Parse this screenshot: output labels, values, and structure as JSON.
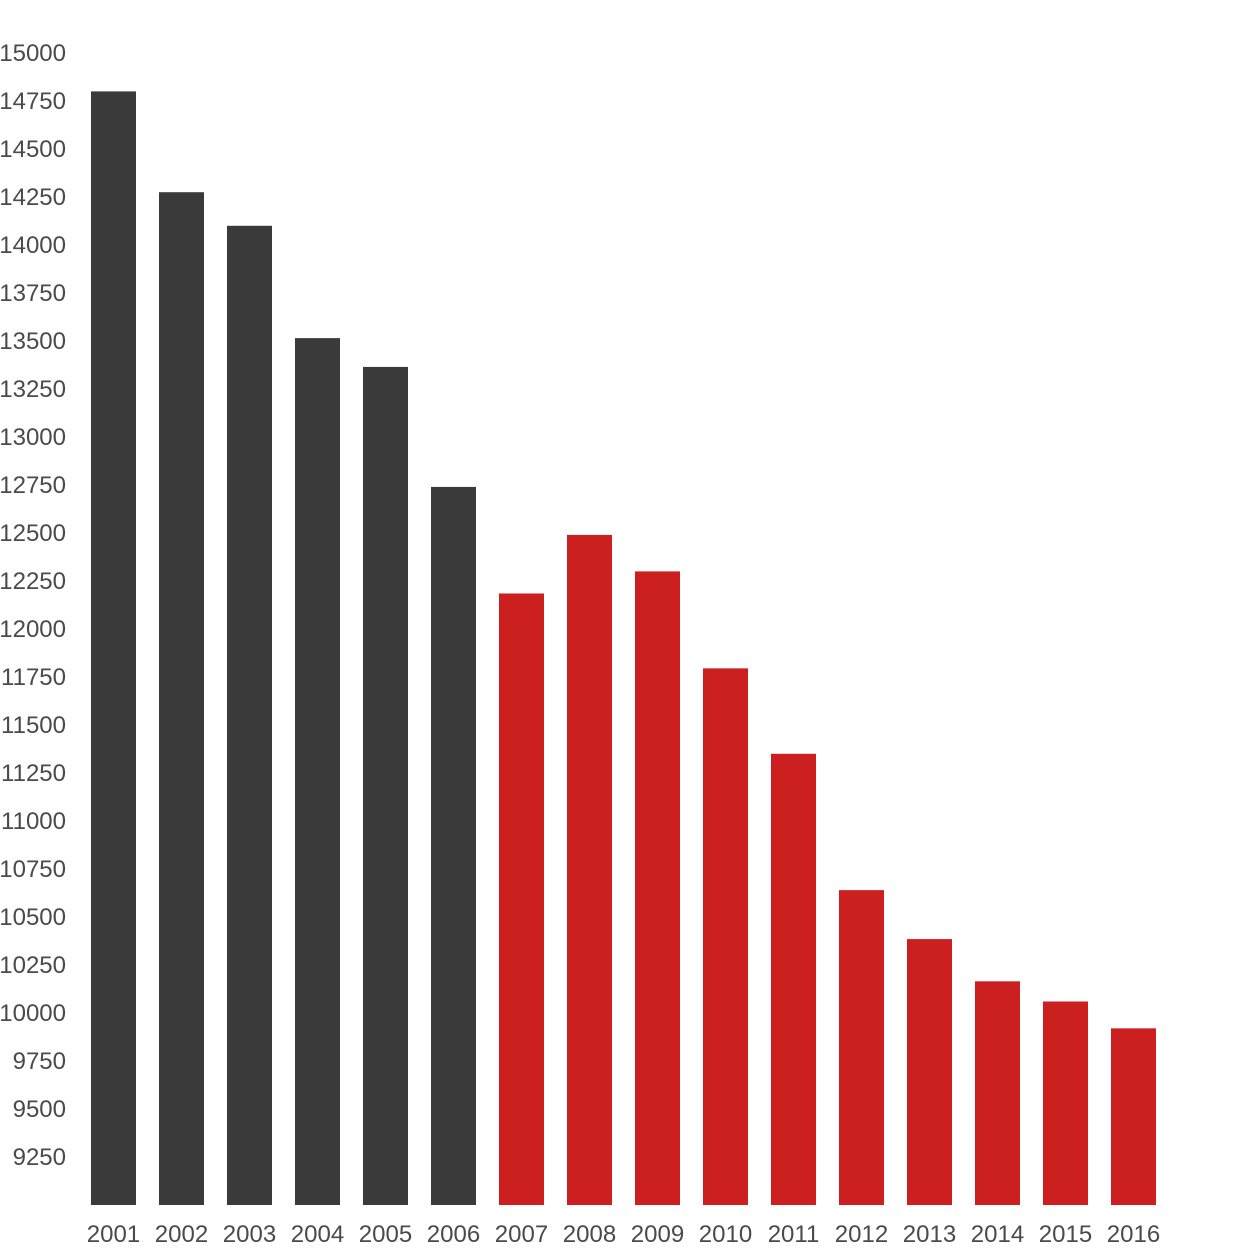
{
  "chart_data": {
    "type": "bar",
    "title": "",
    "xlabel": "",
    "ylabel": "",
    "categories": [
      "2001",
      "2002",
      "2003",
      "2004",
      "2005",
      "2006",
      "2007",
      "2008",
      "2009",
      "2010",
      "2011",
      "2012",
      "2013",
      "2014",
      "2015",
      "2016"
    ],
    "values": [
      14800,
      14275,
      14100,
      13515,
      13365,
      12740,
      12185,
      12490,
      12300,
      11795,
      11350,
      10640,
      10385,
      10165,
      10060,
      9920
    ],
    "y_ticks": [
      "9250",
      "9500",
      "9750",
      "10000",
      "10250",
      "10500",
      "10750",
      "11000",
      "11250",
      "11500",
      "11750",
      "12000",
      "12250",
      "12500",
      "12750",
      "13000",
      "13250",
      "13500",
      "13750",
      "14000",
      "14250",
      "14500",
      "14750",
      "15000"
    ],
    "ylim": [
      9000,
      15000
    ],
    "grid": false,
    "colors": {
      "early": "#3a3a3a",
      "late": "#cc1f20"
    },
    "bar_colors": [
      "early",
      "early",
      "early",
      "early",
      "early",
      "early",
      "late",
      "late",
      "late",
      "late",
      "late",
      "late",
      "late",
      "late",
      "late",
      "late"
    ]
  }
}
